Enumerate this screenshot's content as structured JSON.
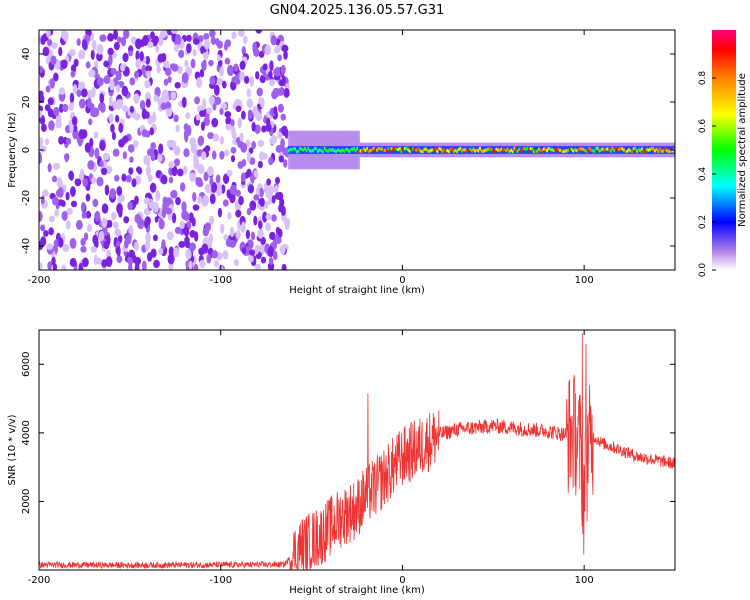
{
  "title": "GN04.2025.136.05.57.G31",
  "chart_data": [
    {
      "type": "heatmap",
      "xlabel": "Height of straight line (km)",
      "ylabel": "Frequency (Hz)",
      "xlim": [
        -200,
        150
      ],
      "ylim": [
        -50,
        50
      ],
      "x_ticks": [
        -200,
        -100,
        0,
        100
      ],
      "y_ticks": [
        -40,
        -20,
        0,
        20,
        40
      ],
      "colorbar": {
        "label": "Normalized spectral amplitude",
        "range": [
          0,
          1
        ],
        "ticks": [
          0.0,
          0.2,
          0.4,
          0.6,
          0.8
        ],
        "tick_labels": [
          "0.0",
          "0.2",
          "0.4",
          "0.6",
          "0.8"
        ]
      },
      "regions": [
        {
          "x": [
            -200,
            -63
          ],
          "y": [
            -50,
            50
          ],
          "amplitude": [
            0.05,
            0.2
          ],
          "description": "noise"
        },
        {
          "x": [
            -63,
            150
          ],
          "y": [
            -3,
            3
          ],
          "amplitude": [
            0.3,
            1.0
          ],
          "description": "signal band near 0 Hz"
        }
      ]
    },
    {
      "type": "line",
      "xlabel": "Height of straight line (km)",
      "ylabel": "SNR (10 * v/v)",
      "xlim": [
        -200,
        150
      ],
      "ylim": [
        0,
        7000
      ],
      "x_ticks": [
        -200,
        -100,
        0,
        100
      ],
      "y_ticks": [
        2000,
        4000,
        6000
      ],
      "color": "#ee3333",
      "series": [
        {
          "x": [
            -200,
            -150,
            -100,
            -65,
            -55,
            -45,
            -35,
            -25,
            -20,
            -15,
            -10,
            -5,
            0,
            10,
            20,
            30,
            40,
            50,
            60,
            70,
            80,
            90,
            95,
            98,
            100,
            102,
            105,
            110,
            120,
            130,
            140,
            150
          ],
          "values": [
            150,
            140,
            150,
            160,
            700,
            1000,
            1500,
            1800,
            2200,
            2400,
            2700,
            3000,
            3300,
            3600,
            3950,
            4100,
            4150,
            4200,
            4150,
            4100,
            4050,
            3950,
            4000,
            3500,
            2000,
            3500,
            3900,
            3700,
            3500,
            3300,
            3200,
            3100
          ]
        }
      ],
      "spikes": [
        {
          "x": -19,
          "value": 5150
        },
        {
          "x": 99,
          "value": 6900
        },
        {
          "x": 101,
          "value": 6600
        }
      ]
    }
  ]
}
